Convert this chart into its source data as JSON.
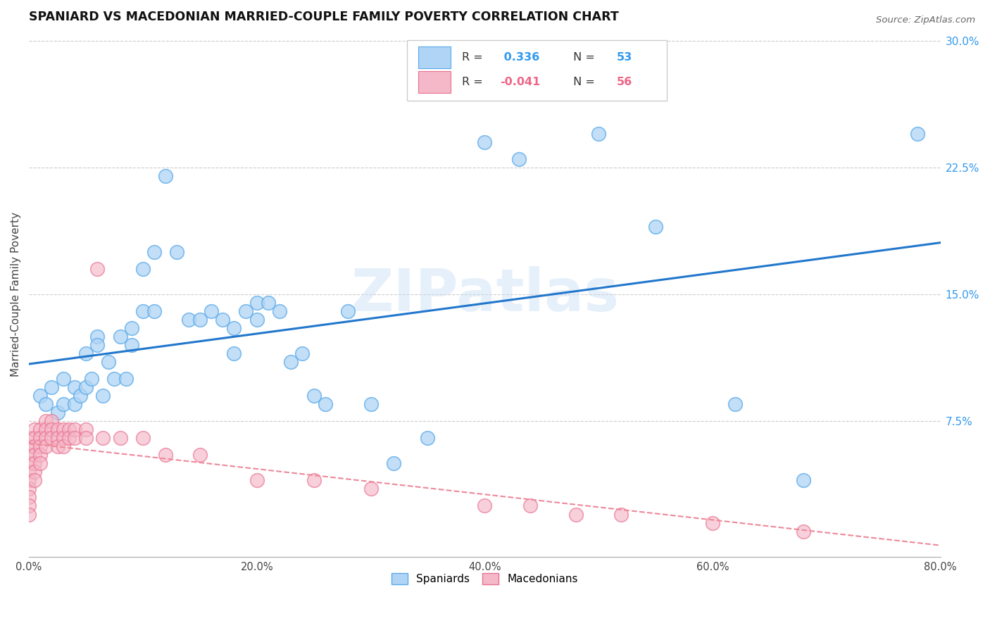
{
  "title": "SPANIARD VS MACEDONIAN MARRIED-COUPLE FAMILY POVERTY CORRELATION CHART",
  "source": "Source: ZipAtlas.com",
  "ylabel": "Married-Couple Family Poverty",
  "xlim": [
    0,
    0.8
  ],
  "ylim": [
    -0.005,
    0.305
  ],
  "xtick_labels": [
    "0.0%",
    "",
    "20.0%",
    "",
    "40.0%",
    "",
    "60.0%",
    "",
    "80.0%"
  ],
  "xtick_vals": [
    0.0,
    0.1,
    0.2,
    0.3,
    0.4,
    0.5,
    0.6,
    0.7,
    0.8
  ],
  "ytick_labels": [
    "7.5%",
    "15.0%",
    "22.5%",
    "30.0%"
  ],
  "ytick_vals": [
    0.075,
    0.15,
    0.225,
    0.3
  ],
  "spaniard_color": "#afd4f5",
  "spaniard_edge_color": "#5aaae8",
  "macedonian_color": "#f5b8c8",
  "macedonian_edge_color": "#e87090",
  "spaniard_line_color": "#2277cc",
  "macedonian_line_color": "#ee8899",
  "watermark": "ZIPatlas",
  "legend_r_spaniard": "R =  0.336",
  "legend_n_spaniard": "N = 53",
  "legend_r_macedonian": "R = -0.041",
  "legend_n_macedonian": "N = 56",
  "spaniard_x": [
    0.01,
    0.015,
    0.02,
    0.025,
    0.03,
    0.03,
    0.04,
    0.04,
    0.045,
    0.05,
    0.05,
    0.055,
    0.06,
    0.06,
    0.065,
    0.07,
    0.075,
    0.08,
    0.085,
    0.09,
    0.09,
    0.1,
    0.1,
    0.11,
    0.11,
    0.12,
    0.13,
    0.14,
    0.15,
    0.16,
    0.17,
    0.18,
    0.18,
    0.19,
    0.2,
    0.2,
    0.21,
    0.22,
    0.23,
    0.24,
    0.25,
    0.26,
    0.28,
    0.3,
    0.32,
    0.35,
    0.4,
    0.43,
    0.5,
    0.55,
    0.62,
    0.68,
    0.78
  ],
  "spaniard_y": [
    0.09,
    0.085,
    0.095,
    0.08,
    0.1,
    0.085,
    0.095,
    0.085,
    0.09,
    0.115,
    0.095,
    0.1,
    0.125,
    0.12,
    0.09,
    0.11,
    0.1,
    0.125,
    0.1,
    0.13,
    0.12,
    0.14,
    0.165,
    0.175,
    0.14,
    0.22,
    0.175,
    0.135,
    0.135,
    0.14,
    0.135,
    0.13,
    0.115,
    0.14,
    0.135,
    0.145,
    0.145,
    0.14,
    0.11,
    0.115,
    0.09,
    0.085,
    0.14,
    0.085,
    0.05,
    0.065,
    0.24,
    0.23,
    0.245,
    0.19,
    0.085,
    0.04,
    0.245
  ],
  "macedonian_x": [
    0.0,
    0.0,
    0.0,
    0.0,
    0.0,
    0.0,
    0.0,
    0.0,
    0.0,
    0.0,
    0.005,
    0.005,
    0.005,
    0.005,
    0.005,
    0.005,
    0.005,
    0.01,
    0.01,
    0.01,
    0.01,
    0.01,
    0.015,
    0.015,
    0.015,
    0.015,
    0.02,
    0.02,
    0.02,
    0.025,
    0.025,
    0.025,
    0.03,
    0.03,
    0.03,
    0.035,
    0.035,
    0.04,
    0.04,
    0.05,
    0.05,
    0.06,
    0.065,
    0.08,
    0.1,
    0.12,
    0.15,
    0.2,
    0.25,
    0.3,
    0.4,
    0.48,
    0.52,
    0.6,
    0.68,
    0.44
  ],
  "macedonian_y": [
    0.065,
    0.06,
    0.055,
    0.05,
    0.045,
    0.04,
    0.035,
    0.03,
    0.025,
    0.02,
    0.07,
    0.065,
    0.06,
    0.055,
    0.05,
    0.045,
    0.04,
    0.07,
    0.065,
    0.06,
    0.055,
    0.05,
    0.075,
    0.07,
    0.065,
    0.06,
    0.075,
    0.07,
    0.065,
    0.07,
    0.065,
    0.06,
    0.07,
    0.065,
    0.06,
    0.07,
    0.065,
    0.07,
    0.065,
    0.07,
    0.065,
    0.165,
    0.065,
    0.065,
    0.065,
    0.055,
    0.055,
    0.04,
    0.04,
    0.035,
    0.025,
    0.02,
    0.02,
    0.015,
    0.01,
    0.025
  ]
}
